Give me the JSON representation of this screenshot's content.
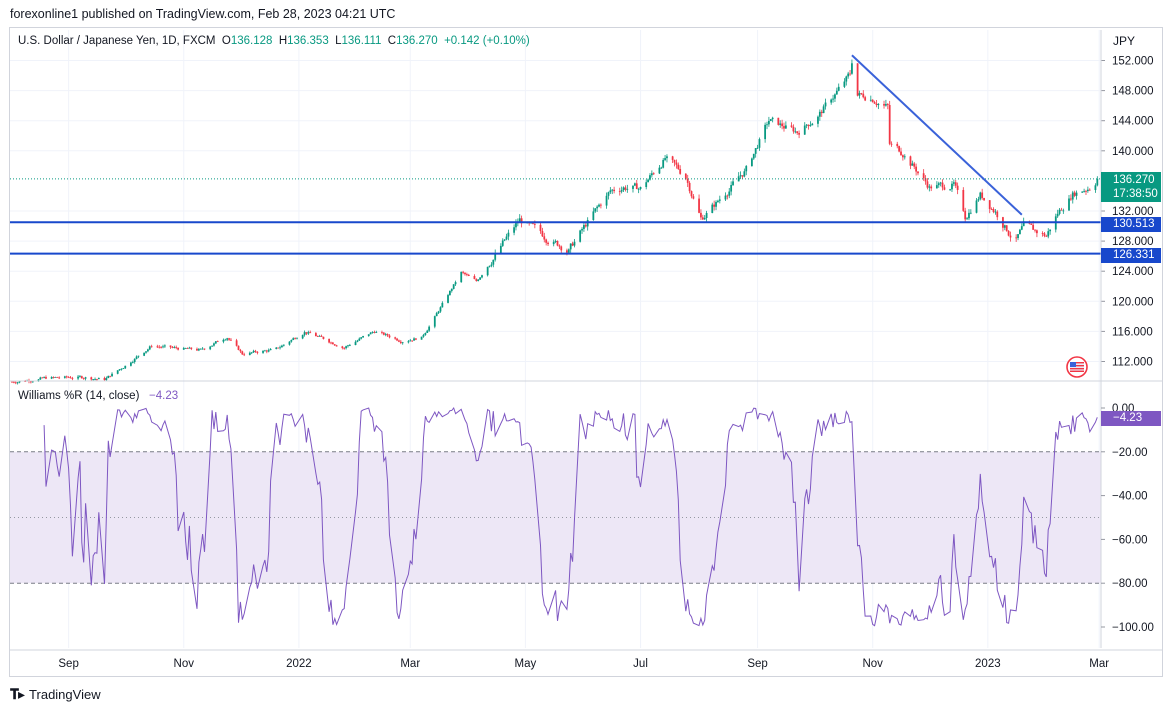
{
  "publisher": "forexonline1 published on TradingView.com, Feb 28, 2023 04:21 UTC",
  "legend": {
    "symbol": "U.S. Dollar / Japanese Yen, 1D, FXCM",
    "open_label": "O",
    "open": "136.128",
    "high_label": "H",
    "high": "136.353",
    "low_label": "L",
    "low": "136.111",
    "close_label": "C",
    "close": "136.270",
    "change": "+0.142 (+0.10%)"
  },
  "currency": "JPY",
  "price_tags": {
    "last": "136.270",
    "countdown": "17:38:50",
    "line1": "130.513",
    "line2": "126.331"
  },
  "indicator": {
    "label": "Williams %R (14, close)",
    "value": "−4.23"
  },
  "brand": "TradingView",
  "colors": {
    "up": "#089981",
    "down": "#f23645",
    "hline": "#1848cc",
    "trendline": "#3a62d9",
    "wr_line": "#7e57c2",
    "wr_band": "#ede7f6"
  },
  "icons": {
    "flag": "us-flag-icon",
    "logo": "tradingview-logo-icon"
  },
  "chart_data": [
    {
      "type": "candlestick",
      "title": "U.S. Dollar / Japanese Yen, 1D, FXCM",
      "ylim": [
        108.5,
        155.0
      ],
      "y_ticks": [
        "152.000",
        "148.000",
        "144.000",
        "140.000",
        "132.000",
        "128.000",
        "124.000",
        "120.000",
        "116.000",
        "112.000"
      ],
      "x_ticks": [
        "Sep",
        "Nov",
        "2022",
        "Mar",
        "May",
        "Jul",
        "Sep",
        "Nov",
        "2023",
        "Mar"
      ],
      "horizontal_lines": [
        130.513,
        126.331
      ],
      "last_price": 136.27,
      "trendline": {
        "from": {
          "date": "2022-10-21",
          "price": 152.7
        },
        "to": {
          "date": "2023-01-19",
          "price": 131.5
        }
      },
      "close_path": [
        {
          "date": "2021-08-02",
          "price": 109.3
        },
        {
          "date": "2021-08-20",
          "price": 109.8
        },
        {
          "date": "2021-09-10",
          "price": 109.9
        },
        {
          "date": "2021-09-20",
          "price": 109.6
        },
        {
          "date": "2021-09-30",
          "price": 111.3
        },
        {
          "date": "2021-10-15",
          "price": 114.1
        },
        {
          "date": "2021-10-25",
          "price": 113.8
        },
        {
          "date": "2021-11-10",
          "price": 113.5
        },
        {
          "date": "2021-11-24",
          "price": 115.3
        },
        {
          "date": "2021-12-02",
          "price": 113.0
        },
        {
          "date": "2021-12-20",
          "price": 113.6
        },
        {
          "date": "2022-01-04",
          "price": 116.0
        },
        {
          "date": "2022-01-25",
          "price": 113.9
        },
        {
          "date": "2022-02-10",
          "price": 116.0
        },
        {
          "date": "2022-02-24",
          "price": 114.8
        },
        {
          "date": "2022-03-07",
          "price": 115.2
        },
        {
          "date": "2022-03-15",
          "price": 118.3
        },
        {
          "date": "2022-03-28",
          "price": 123.8
        },
        {
          "date": "2022-04-05",
          "price": 122.6
        },
        {
          "date": "2022-04-20",
          "price": 128.0
        },
        {
          "date": "2022-04-28",
          "price": 130.8
        },
        {
          "date": "2022-05-12",
          "price": 128.5
        },
        {
          "date": "2022-05-24",
          "price": 126.8
        },
        {
          "date": "2022-06-06",
          "price": 131.6
        },
        {
          "date": "2022-06-15",
          "price": 134.6
        },
        {
          "date": "2022-06-22",
          "price": 135.2
        },
        {
          "date": "2022-07-01",
          "price": 135.0
        },
        {
          "date": "2022-07-14",
          "price": 139.0
        },
        {
          "date": "2022-07-25",
          "price": 136.6
        },
        {
          "date": "2022-08-02",
          "price": 131.0
        },
        {
          "date": "2022-08-10",
          "price": 133.0
        },
        {
          "date": "2022-08-26",
          "price": 137.5
        },
        {
          "date": "2022-09-07",
          "price": 144.0
        },
        {
          "date": "2022-09-22",
          "price": 142.5
        },
        {
          "date": "2022-10-03",
          "price": 144.6
        },
        {
          "date": "2022-10-20",
          "price": 150.1
        },
        {
          "date": "2022-10-21",
          "price": 151.9
        },
        {
          "date": "2022-10-24",
          "price": 147.5
        },
        {
          "date": "2022-11-01",
          "price": 147.0
        },
        {
          "date": "2022-11-09",
          "price": 145.8
        },
        {
          "date": "2022-11-10",
          "price": 140.8
        },
        {
          "date": "2022-11-17",
          "price": 139.8
        },
        {
          "date": "2022-12-01",
          "price": 135.2
        },
        {
          "date": "2022-12-14",
          "price": 135.5
        },
        {
          "date": "2022-12-20",
          "price": 131.2
        },
        {
          "date": "2022-12-28",
          "price": 134.2
        },
        {
          "date": "2023-01-05",
          "price": 132.0
        },
        {
          "date": "2023-01-12",
          "price": 129.2
        },
        {
          "date": "2023-01-16",
          "price": 128.2
        },
        {
          "date": "2023-01-20",
          "price": 129.9
        },
        {
          "date": "2023-02-01",
          "price": 128.7
        },
        {
          "date": "2023-02-07",
          "price": 131.7
        },
        {
          "date": "2023-02-15",
          "price": 134.3
        },
        {
          "date": "2023-02-24",
          "price": 135.2
        },
        {
          "date": "2023-02-28",
          "price": 136.27
        }
      ]
    },
    {
      "type": "line",
      "title": "Williams %R (14, close)",
      "ylim": [
        -105,
        0
      ],
      "y_ticks": [
        "0.00",
        "−20.00",
        "−40.00",
        "−60.00",
        "−80.00",
        "−100.00"
      ],
      "bands": [
        -20,
        -80
      ],
      "midline": -50,
      "last_value": -4.23
    }
  ]
}
